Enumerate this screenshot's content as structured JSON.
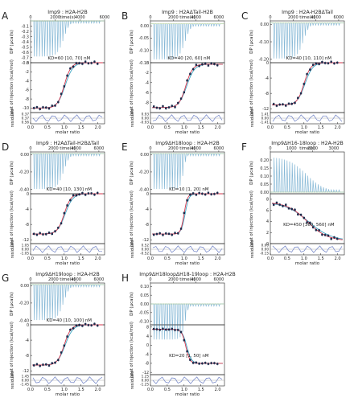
{
  "chart_data": [
    {
      "letter": "A",
      "type": "scatter",
      "title": "Imp9 : H2A-H2B",
      "top_xlabel": "time(s)",
      "top_ylabel": "DP (µcal/s)",
      "top_xticks": [
        "0",
        "2000",
        "4000",
        "6000"
      ],
      "top_yticks": [
        "-0.1",
        "-0.2",
        "-0.3",
        "-0.4",
        "-0.5",
        "-0.6",
        "-0.7",
        "-0.8"
      ],
      "top_ylim": [
        -0.8,
        0.0
      ],
      "time_max": 6000,
      "annotation": "KD=60 [10, 70] nM",
      "mid_ylabel": "heat of injection (kcal/mol)",
      "mid_yticks": [
        "0",
        "-2",
        "-4",
        "-6",
        "-8",
        "-10"
      ],
      "mid_ylim": [
        -11,
        0
      ],
      "iso": {
        "base": -10,
        "top": 0,
        "mid": 1.0,
        "width": 0.1
      },
      "bot_ylabel": "residuals",
      "bot_yticks": [
        "0.37",
        "0.37",
        "0.56"
      ],
      "xlabel": "molar ratio",
      "xticks": [
        "0.0",
        "0.5",
        "1.0",
        "1.5",
        "2.0"
      ],
      "xlim": [
        0,
        2.2
      ]
    },
    {
      "letter": "B",
      "type": "scatter",
      "title": "Imp9 : H2AΔTail-H2B",
      "top_xlabel": "time(s)",
      "top_ylabel": "DP (µcal/s)",
      "top_xticks": [
        "0",
        "2000",
        "4000",
        "6000"
      ],
      "top_yticks": [
        "0.00",
        "-0.05",
        "-0.10",
        "-0.15"
      ],
      "top_ylim": [
        -0.15,
        0.02
      ],
      "time_max": 6500,
      "annotation": "KD=40 [20, 60] nM",
      "mid_ylabel": "heat of injection (kcal/mol)",
      "mid_yticks": [
        "0",
        "-2",
        "-4",
        "-6",
        "-8"
      ],
      "mid_ylim": [
        -10,
        0
      ],
      "iso": {
        "base": -9,
        "top": -0.3,
        "mid": 1.05,
        "width": 0.1
      },
      "bot_ylabel": "residuals",
      "bot_yticks": [
        "0.93",
        "0.00",
        "-0.93"
      ],
      "xlabel": "molar ratio",
      "xticks": [
        "0.0",
        "0.5",
        "1.0",
        "1.5",
        "2.0"
      ],
      "xlim": [
        0,
        2.2
      ]
    },
    {
      "letter": "C",
      "type": "scatter",
      "title": "Imp9 : H2A-H2BΔTail",
      "top_xlabel": "time(s)",
      "top_ylabel": "DP (µcal/s)",
      "top_xticks": [
        "0",
        "2000",
        "4000",
        "6000"
      ],
      "top_yticks": [
        "0.00",
        "-0.10",
        "-0.20"
      ],
      "top_ylim": [
        -0.22,
        0.02
      ],
      "time_max": 6500,
      "annotation": "KD=40 [10, 110] nM",
      "mid_ylabel": "heat of injection (kcal/mol)",
      "mid_yticks": [
        "0",
        "-4",
        "-8",
        "-12"
      ],
      "mid_ylim": [
        -13,
        0
      ],
      "iso": {
        "base": -11,
        "top": 0,
        "mid": 1.0,
        "width": 0.1
      },
      "bot_ylabel": "residuals",
      "bot_yticks": [
        "1.41",
        "0.00",
        "-1.41"
      ],
      "xlabel": "molar ratio",
      "xticks": [
        "0.0",
        "0.5",
        "1.0",
        "1.5",
        "2.0"
      ],
      "xlim": [
        0,
        2.2
      ]
    },
    {
      "letter": "D",
      "type": "scatter",
      "title": "Imp9 : H2AΔTail-H2BΔTail",
      "top_xlabel": "time(s)",
      "top_ylabel": "DP (µcal/s)",
      "top_xticks": [
        "0",
        "2000",
        "4000",
        "6000"
      ],
      "top_yticks": [
        "0.00",
        "-0.20",
        "-0.40"
      ],
      "top_ylim": [
        -0.45,
        0.03
      ],
      "time_max": 6500,
      "annotation": "KD=40 [10, 130] nM",
      "mid_ylabel": "heat of injection (kcal/mol)",
      "mid_yticks": [
        "0",
        "-4",
        "-8",
        "-12"
      ],
      "mid_ylim": [
        -13,
        0
      ],
      "iso": {
        "base": -10.5,
        "top": 0,
        "mid": 1.0,
        "width": 0.1
      },
      "bot_ylabel": "residuals",
      "bot_yticks": [
        "1.05",
        "0.00",
        "-1.05"
      ],
      "xlabel": "molar ratio",
      "xticks": [
        "0.0",
        "0.5",
        "1.0",
        "1.5",
        "2.0"
      ],
      "xlim": [
        0,
        2.2
      ]
    },
    {
      "letter": "E",
      "type": "scatter",
      "title": "Imp9ΔH18loop : H2A-H2B",
      "top_xlabel": "time(s)",
      "top_ylabel": "DP (µcal/s)",
      "top_xticks": [
        "0",
        "2000",
        "4000",
        "6000"
      ],
      "top_yticks": [
        "0.00",
        "-0.20",
        "-0.40"
      ],
      "top_ylim": [
        -0.45,
        0.03
      ],
      "time_max": 6500,
      "annotation": "KD=10 [1, 20] nM",
      "mid_ylabel": "heat of injection (kcal/mol)",
      "mid_yticks": [
        "0",
        "-4",
        "-8",
        "-12"
      ],
      "mid_ylim": [
        -13,
        0
      ],
      "iso": {
        "base": -10.5,
        "top": 0,
        "mid": 1.0,
        "width": 0.05
      },
      "bot_ylabel": "residuals",
      "bot_yticks": [
        "0.52",
        "0.00",
        "-0.52"
      ],
      "xlabel": "molar ratio",
      "xticks": [
        "0.0",
        "0.5",
        "1.0",
        "1.5",
        "2.0"
      ],
      "xlim": [
        0,
        2.2
      ]
    },
    {
      "letter": "F",
      "type": "scatter",
      "title": "Imp9ΔH16-18loop : H2A-H2B",
      "top_xlabel": "time(s)",
      "top_ylabel": "DP (µcal/s)",
      "top_xticks": [
        "0",
        "1000",
        "2000",
        "3000"
      ],
      "top_yticks": [
        "0.20",
        "0.15",
        "0.10",
        "0.05",
        "0.00"
      ],
      "top_ylim": [
        -0.01,
        0.25
      ],
      "time_max": 3500,
      "annotation": "KD=450 [360, 560] nM",
      "mid_ylabel": "heat of injection (kcal/mol)",
      "mid_yticks": [
        "8",
        "6",
        "4",
        "2",
        "0"
      ],
      "mid_ylim": [
        0,
        9
      ],
      "iso": {
        "base": 7.5,
        "top": 0.5,
        "mid": 1.1,
        "width": 0.3
      },
      "bot_ylabel": "residuals",
      "bot_yticks": [
        "0.00",
        "0.00",
        "-0.15"
      ],
      "xlabel": "molar ratio",
      "xticks": [
        "0.0",
        "0.5",
        "1.0",
        "1.5",
        "2.0"
      ],
      "xlim": [
        0,
        2.2
      ]
    },
    {
      "letter": "G",
      "type": "scatter",
      "title": "Imp9ΔH19loop : H2A-H2B",
      "top_xlabel": "time(s)",
      "top_ylabel": "DP (µcal/s)",
      "top_xticks": [
        "0",
        "2000",
        "4000",
        "6000"
      ],
      "top_yticks": [
        "0.00",
        "-0.20",
        "-0.40"
      ],
      "top_ylim": [
        -0.45,
        0.03
      ],
      "time_max": 6500,
      "annotation": "KD=40 [10, 100] nM",
      "mid_ylabel": "heat of injection (kcal/mol)",
      "mid_yticks": [
        "0",
        "-4",
        "-8",
        "-12"
      ],
      "mid_ylim": [
        -13,
        0
      ],
      "iso": {
        "base": -10.5,
        "top": 0,
        "mid": 1.0,
        "width": 0.1
      },
      "bot_ylabel": "residuals",
      "bot_yticks": [
        "1.45",
        "0.00",
        "-1.45"
      ],
      "xlabel": "molar ratio",
      "xticks": [
        "0.0",
        "0.5",
        "1.0",
        "1.5",
        "2.0"
      ],
      "xlim": [
        0,
        2.2
      ]
    },
    {
      "letter": "H",
      "type": "scatter",
      "title": "Imp9ΔH18loopΔH18-19loop : H2A-H2B",
      "top_xlabel": "time(s)",
      "top_ylabel": "DP (µcal/s)",
      "top_xticks": [
        "0",
        "2000",
        "4000",
        "6000"
      ],
      "top_yticks": [
        "0.10",
        "0.05",
        "0.00",
        "-0.05",
        "-0.10"
      ],
      "top_ylim": [
        -0.12,
        0.12
      ],
      "time_max": 6500,
      "annotation": "KD=20 [1, 50] nM",
      "mid_ylabel": "heat of injection (kcal/mol)",
      "mid_yticks": [
        "8",
        "4",
        "0",
        "-4",
        "-8",
        "-12"
      ],
      "mid_ylim": [
        -13,
        9
      ],
      "iso": {
        "base": 7,
        "top": -8,
        "mid": 1.05,
        "width": 0.06
      },
      "bot_ylabel": "residuals",
      "bot_yticks": [
        "1.25",
        "0.00",
        "-1.25"
      ],
      "xlabel": "molar ratio",
      "xticks": [
        "0.0",
        "0.5",
        "1.0",
        "1.5",
        "2.0"
      ],
      "xlim": [
        0,
        2.2
      ]
    }
  ],
  "colors": {
    "trace": "#86b8d6",
    "trace_alt": "#b7cf8a",
    "fit": "#d6334a",
    "fit_secondary": "#3fa6c4",
    "points": "#1b2a4a",
    "residual": "#6c7fc4",
    "axis": "#222222"
  }
}
